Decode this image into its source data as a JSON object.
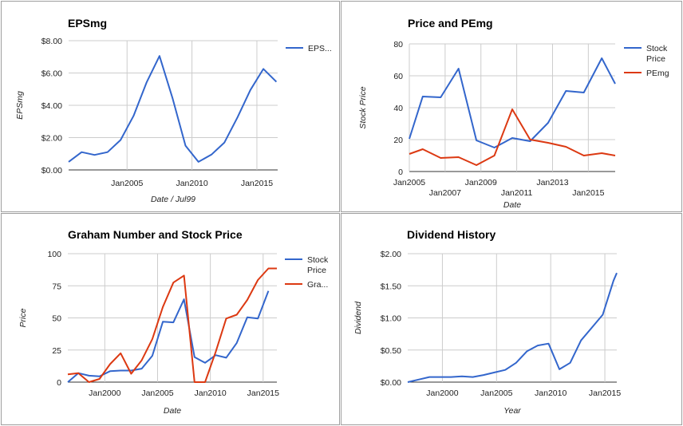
{
  "chart_data": [
    {
      "type": "line",
      "title": "EPSmg",
      "xlabel": "Date / Jul99",
      "ylabel": "EPSmg",
      "x_range": [
        2000.5,
        2016.6
      ],
      "ylim": [
        0,
        8
      ],
      "x_ticks": [
        {
          "value": 2005,
          "label": "Jan2005"
        },
        {
          "value": 2010,
          "label": "Jan2010"
        },
        {
          "value": 2015,
          "label": "Jan2015"
        }
      ],
      "y_ticks": [
        {
          "value": 0,
          "label": "$0.00"
        },
        {
          "value": 2,
          "label": "$2.00"
        },
        {
          "value": 4,
          "label": "$4.00"
        },
        {
          "value": 6,
          "label": "$6.00"
        },
        {
          "value": 8,
          "label": "$8.00"
        }
      ],
      "grid": true,
      "legend_position": "right",
      "series": [
        {
          "name": "EPS...",
          "color": "#3366cc",
          "x": [
            2000.5,
            2001.5,
            2002.5,
            2003.5,
            2004.5,
            2005.5,
            2006.5,
            2007.5,
            2008.5,
            2009.5,
            2010.5,
            2011.5,
            2012.5,
            2013.5,
            2014.5,
            2015.5,
            2016.5
          ],
          "y": [
            0.5,
            1.1,
            0.93,
            1.1,
            1.85,
            3.35,
            5.4,
            7.05,
            4.45,
            1.5,
            0.5,
            0.95,
            1.7,
            3.25,
            4.95,
            6.25,
            5.45
          ]
        }
      ]
    },
    {
      "type": "line",
      "title": "Price and PEmg",
      "xlabel": "Date",
      "ylabel": "Stock Price",
      "x_range": [
        2005.0,
        2016.5
      ],
      "ylim": [
        0,
        80
      ],
      "x_ticks": [
        {
          "value": 2005,
          "label": "Jan2005"
        },
        {
          "value": 2007,
          "label": "Jan2007"
        },
        {
          "value": 2009,
          "label": "Jan2009"
        },
        {
          "value": 2011,
          "label": "Jan2011"
        },
        {
          "value": 2013,
          "label": "Jan2013"
        },
        {
          "value": 2015,
          "label": "Jan2015"
        }
      ],
      "y_ticks": [
        {
          "value": 0,
          "label": "0"
        },
        {
          "value": 20,
          "label": "20"
        },
        {
          "value": 40,
          "label": "40"
        },
        {
          "value": 60,
          "label": "60"
        },
        {
          "value": 80,
          "label": "80"
        }
      ],
      "grid": true,
      "legend_position": "right",
      "series": [
        {
          "name": "Stock Price",
          "color": "#3366cc",
          "x": [
            2005.0,
            2005.75,
            2006.75,
            2007.75,
            2008.75,
            2009.75,
            2010.75,
            2011.75,
            2012.75,
            2013.75,
            2014.75,
            2015.75,
            2016.5
          ],
          "y": [
            20.5,
            47.0,
            46.5,
            64.5,
            19.5,
            15.0,
            21.0,
            19.0,
            30.5,
            50.5,
            49.5,
            71.0,
            55.0
          ]
        },
        {
          "name": "PEmg",
          "color": "#dc3912",
          "x": [
            2005.0,
            2005.75,
            2006.75,
            2007.75,
            2008.75,
            2009.75,
            2010.75,
            2011.75,
            2012.75,
            2013.75,
            2014.75,
            2015.75,
            2016.5
          ],
          "y": [
            11.0,
            14.0,
            8.5,
            9.0,
            4.0,
            10.0,
            39.0,
            20.0,
            18.0,
            15.5,
            10.0,
            11.5,
            10.0
          ]
        }
      ]
    },
    {
      "type": "line",
      "title": "Graham Number and Stock Price",
      "xlabel": "Date",
      "ylabel": "Price",
      "x_range": [
        1996.5,
        2016.3
      ],
      "ylim": [
        0,
        100
      ],
      "x_ticks": [
        {
          "value": 2000,
          "label": "Jan2000"
        },
        {
          "value": 2005,
          "label": "Jan2005"
        },
        {
          "value": 2010,
          "label": "Jan2010"
        },
        {
          "value": 2015,
          "label": "Jan2015"
        }
      ],
      "y_ticks": [
        {
          "value": 0,
          "label": "0"
        },
        {
          "value": 25,
          "label": "25"
        },
        {
          "value": 50,
          "label": "50"
        },
        {
          "value": 75,
          "label": "75"
        },
        {
          "value": 100,
          "label": "100"
        }
      ],
      "grid": true,
      "legend_position": "right",
      "series": [
        {
          "name": "Stock Price",
          "color": "#3366cc",
          "x": [
            1996.5,
            1997.5,
            1998.5,
            1999.5,
            2000.5,
            2001.5,
            2002.5,
            2003.5,
            2004.5,
            2005.5,
            2006.5,
            2007.5,
            2008.5,
            2009.5,
            2010.5,
            2011.5,
            2012.5,
            2013.5,
            2014.5,
            2015.5
          ],
          "y": [
            0,
            7.0,
            5.0,
            4.5,
            8.5,
            9.0,
            9.0,
            10.5,
            20.5,
            47.0,
            46.5,
            64.5,
            19.5,
            15.0,
            21.0,
            19.0,
            30.5,
            50.5,
            49.5,
            71.0
          ]
        },
        {
          "name": "Gra...",
          "color": "#dc3912",
          "x": [
            1996.5,
            1997.5,
            1998.5,
            1999.5,
            2000.5,
            2001.5,
            2002.5,
            2003.5,
            2004.5,
            2005.5,
            2006.5,
            2007.5,
            2008.5,
            2009.5,
            2010.5,
            2011.5,
            2012.5,
            2013.5,
            2014.5,
            2015.5,
            2016.3
          ],
          "y": [
            6.0,
            7.0,
            0,
            2.5,
            14.0,
            22.5,
            6.5,
            17.0,
            33.5,
            58.5,
            77.5,
            83.0,
            0,
            0,
            23.5,
            49.5,
            52.5,
            64.0,
            79.5,
            88.5,
            88.5
          ]
        }
      ]
    },
    {
      "type": "line",
      "title": "Dividend History",
      "xlabel": "Year",
      "ylabel": "Dividend",
      "x_range": [
        1996.8,
        2016.1
      ],
      "ylim": [
        0,
        2
      ],
      "x_ticks": [
        {
          "value": 2000,
          "label": "Jan2000"
        },
        {
          "value": 2005,
          "label": "Jan2005"
        },
        {
          "value": 2010,
          "label": "Jan2010"
        },
        {
          "value": 2015,
          "label": "Jan2015"
        }
      ],
      "y_ticks": [
        {
          "value": 0,
          "label": "$0.00"
        },
        {
          "value": 0.5,
          "label": "$0.50"
        },
        {
          "value": 1,
          "label": "$1.00"
        },
        {
          "value": 1.5,
          "label": "$1.50"
        },
        {
          "value": 2,
          "label": "$2.00"
        }
      ],
      "grid": true,
      "legend_position": "none",
      "series": [
        {
          "name": "",
          "color": "#3366cc",
          "x": [
            1996.8,
            1997.8,
            1998.8,
            1999.8,
            2000.8,
            2001.8,
            2002.8,
            2003.8,
            2004.8,
            2005.8,
            2006.8,
            2007.8,
            2008.8,
            2009.8,
            2010.8,
            2011.8,
            2012.8,
            2013.8,
            2014.8,
            2015.8,
            2016.1
          ],
          "y": [
            0,
            0.04,
            0.08,
            0.08,
            0.08,
            0.09,
            0.08,
            0.11,
            0.15,
            0.19,
            0.3,
            0.48,
            0.57,
            0.6,
            0.2,
            0.3,
            0.65,
            0.85,
            1.05,
            1.58,
            1.7
          ]
        }
      ]
    }
  ]
}
